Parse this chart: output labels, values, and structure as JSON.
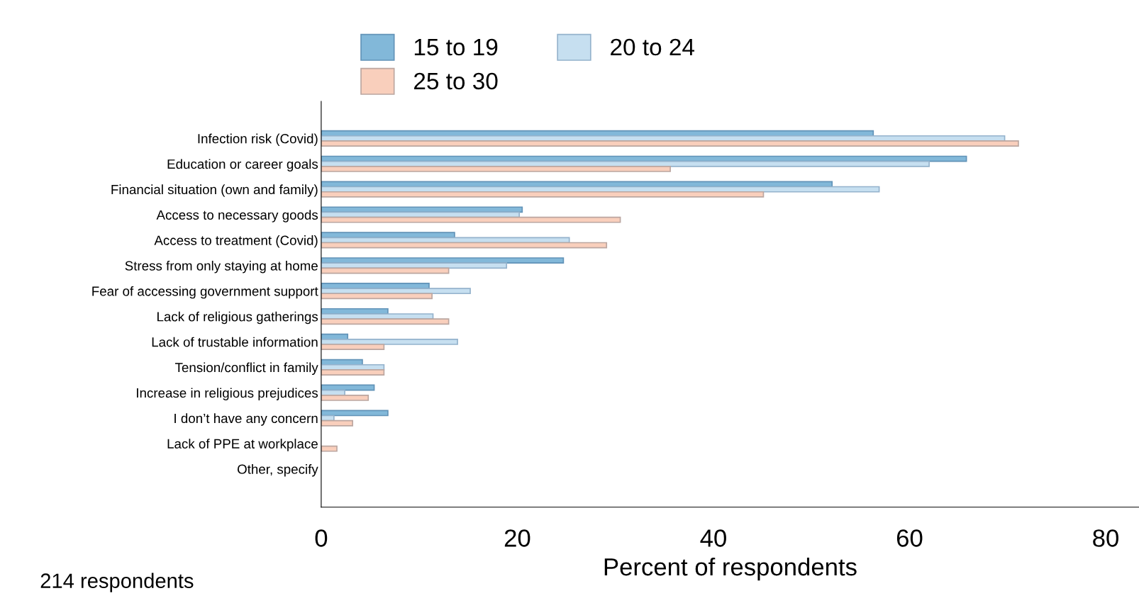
{
  "chart_data": {
    "type": "bar",
    "orientation": "horizontal",
    "xlabel": "Percent of respondents",
    "categories": [
      "Infection risk (Covid)",
      "Education or career goals",
      "Financial situation (own and family)",
      "Access to necessary goods",
      "Access to treatment (Covid)",
      "Stress from only staying at home",
      "Fear of accessing government support",
      "Lack of religious gatherings",
      "Lack of trustable information",
      "Tension/conflict in family",
      "Increase in religious prejudices",
      "I don’t have any concern",
      "Lack of PPE at workplace",
      "Other, specify"
    ],
    "series": [
      {
        "name": "15 to 19",
        "color": "#82b8d9",
        "values": [
          56.3,
          65.8,
          52.1,
          20.5,
          13.6,
          24.7,
          11.0,
          6.8,
          2.7,
          4.2,
          5.4,
          6.8,
          0,
          0
        ]
      },
      {
        "name": "20 to 24",
        "color": "#c6dff0",
        "values": [
          69.7,
          62.0,
          56.9,
          20.2,
          25.3,
          18.9,
          15.2,
          11.4,
          13.9,
          6.4,
          2.4,
          1.3,
          0,
          0
        ]
      },
      {
        "name": "25 to 30",
        "color": "#f9cfbc",
        "values": [
          71.1,
          35.6,
          45.1,
          30.5,
          29.1,
          13.0,
          11.3,
          13.0,
          6.4,
          6.4,
          4.8,
          3.2,
          1.6,
          0
        ]
      }
    ],
    "xlim": [
      0,
      83.4
    ],
    "xticks": [
      0,
      20,
      40,
      60,
      80
    ],
    "grid": false,
    "legend": "top",
    "annotations": [
      "214 respondents"
    ]
  }
}
